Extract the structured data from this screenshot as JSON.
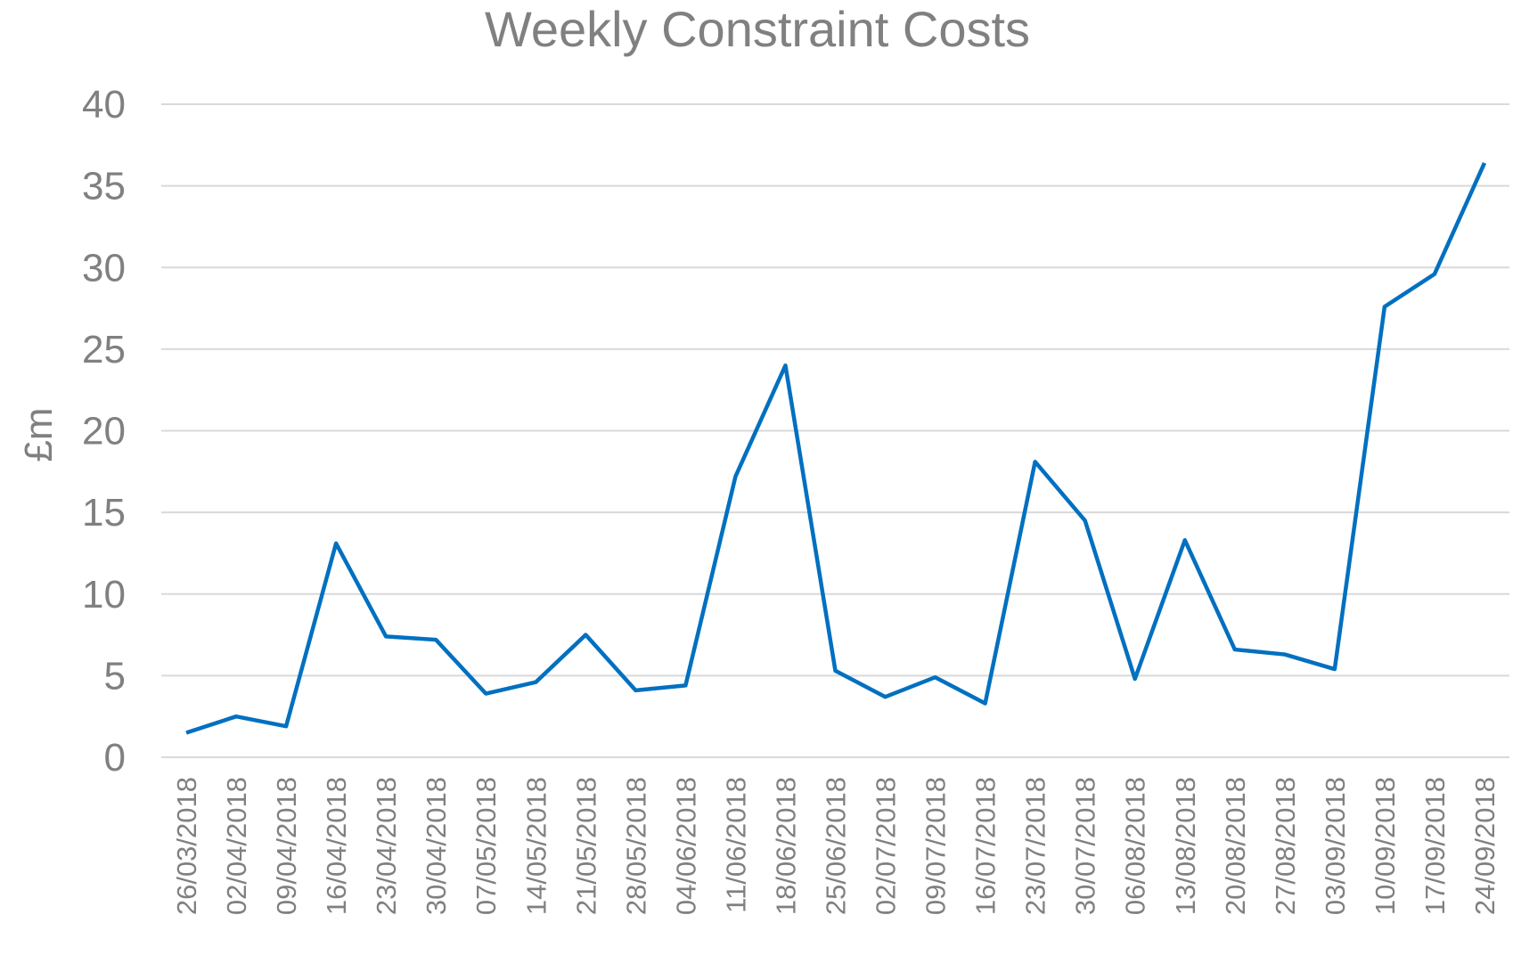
{
  "chart_data": {
    "type": "line",
    "title": "Weekly Constraint Costs",
    "y_label": "£m",
    "categories": [
      "26/03/2018",
      "02/04/2018",
      "09/04/2018",
      "16/04/2018",
      "23/04/2018",
      "30/04/2018",
      "07/05/2018",
      "14/05/2018",
      "21/05/2018",
      "28/05/2018",
      "04/06/2018",
      "11/06/2018",
      "18/06/2018",
      "25/06/2018",
      "02/07/2018",
      "09/07/2018",
      "16/07/2018",
      "23/07/2018",
      "30/07/2018",
      "06/08/2018",
      "13/08/2018",
      "20/08/2018",
      "27/08/2018",
      "03/09/2018",
      "10/09/2018",
      "17/09/2018",
      "24/09/2018"
    ],
    "values": [
      1.5,
      2.5,
      1.9,
      13.1,
      7.4,
      7.2,
      3.9,
      4.6,
      7.5,
      4.1,
      4.4,
      17.2,
      24.0,
      5.3,
      3.7,
      4.9,
      3.3,
      18.1,
      14.5,
      4.8,
      13.3,
      6.6,
      6.3,
      5.4,
      27.6,
      29.6,
      36.4
    ],
    "color": "#0070c0",
    "ylim": [
      0,
      40
    ],
    "yticks": [
      0,
      5,
      10,
      15,
      20,
      25,
      30,
      35,
      40
    ],
    "grid": true
  }
}
